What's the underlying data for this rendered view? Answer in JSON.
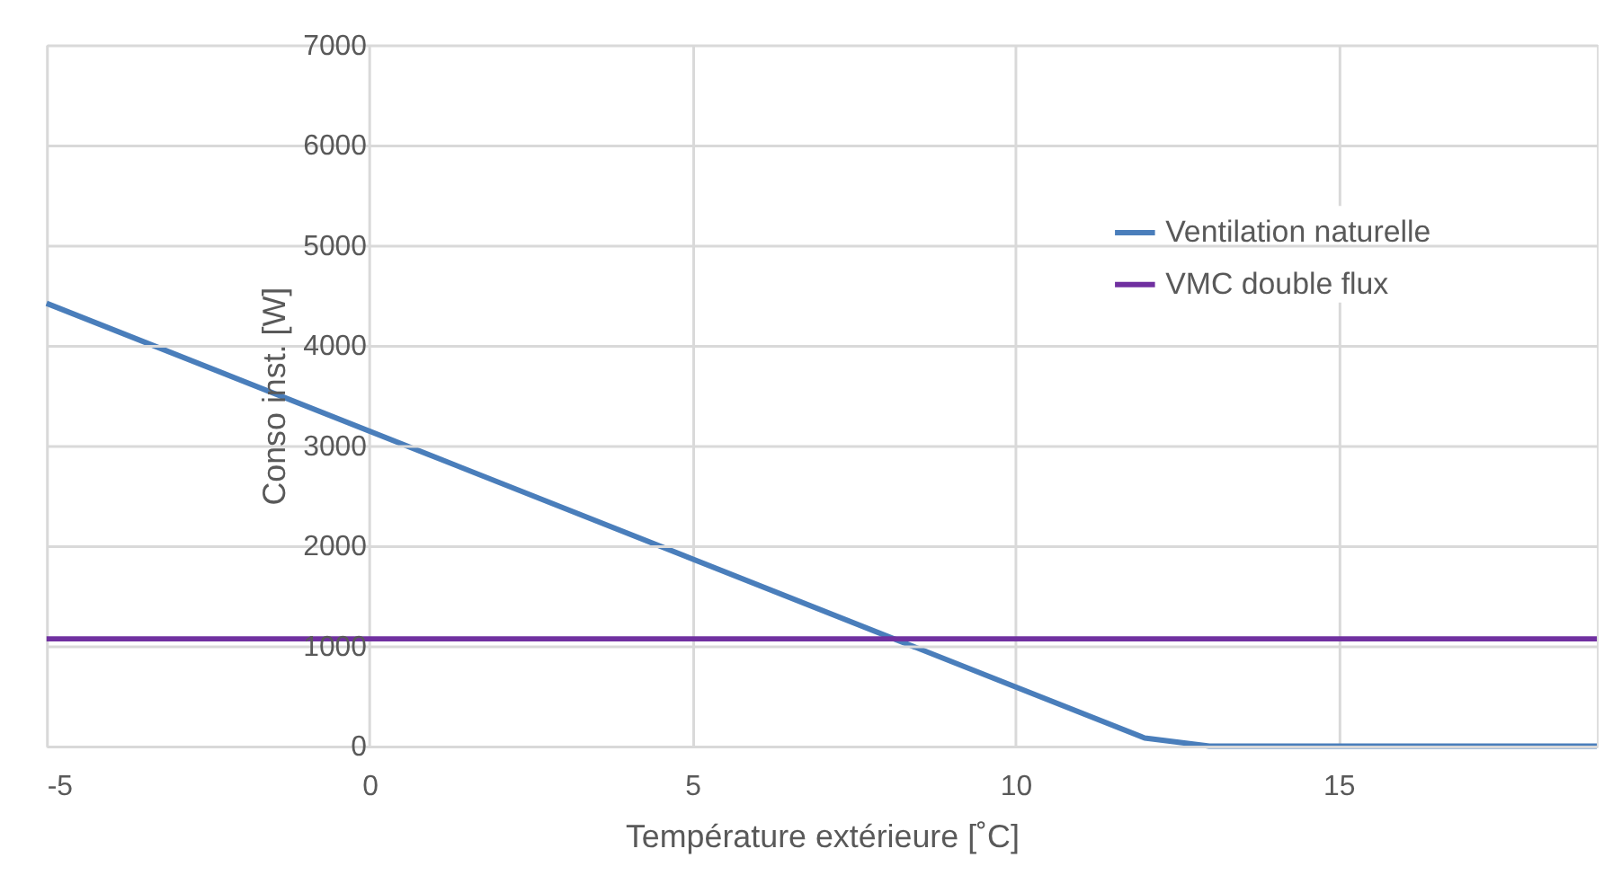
{
  "chart_data": {
    "type": "line",
    "xlabel": "Température extérieure [˚C]",
    "ylabel": "Conso inst. [W]",
    "xlim": [
      -5,
      19
    ],
    "xticks": [
      -5,
      0,
      5,
      10,
      15
    ],
    "ylim": [
      0,
      7000
    ],
    "yticks": [
      0,
      1000,
      2000,
      3000,
      4000,
      5000,
      6000,
      7000
    ],
    "grid": true,
    "legend": "top right",
    "marker": "none",
    "line_style": "solid",
    "series": [
      {
        "name": "Ventilation naturelle",
        "color": "#4a7ebb",
        "x": [
          -5,
          12,
          13,
          19
        ],
        "values": [
          4420,
          80,
          0,
          0
        ]
      },
      {
        "name": "VMC double flux",
        "color": "#7030a0",
        "x": [
          -5,
          19
        ],
        "values": [
          1070,
          1070
        ]
      }
    ]
  }
}
